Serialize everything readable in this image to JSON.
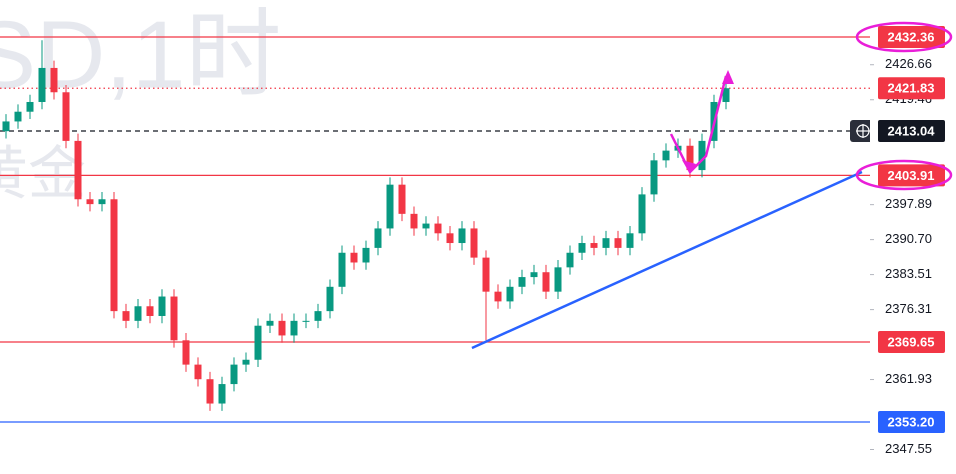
{
  "chart_data": {
    "type": "candlestick",
    "watermark": "SD,1时",
    "watermark_sub": "黄金",
    "up_color": "#089981",
    "down_color": "#f23645",
    "ylim": [
      2342.51,
      2439.97
    ],
    "yticks": [
      2426.66,
      2419.46,
      2397.89,
      {
        "value": 2390.7,
        "label": "2390.70"
      },
      2383.51,
      2376.31,
      2361.93,
      2347.55
    ],
    "open": [
      2413,
      2415,
      2417,
      2419,
      2426,
      2421,
      2411,
      2399,
      2398,
      2399,
      2376,
      2374,
      2377,
      2375,
      2379,
      2370,
      2365,
      2362,
      2357,
      2361,
      2365,
      2366,
      2373,
      2374,
      2371,
      2374,
      2374,
      2376,
      2381,
      2388,
      2386,
      2389,
      2393,
      2402,
      2396,
      2393,
      2394,
      2392,
      2390,
      2393,
      2387,
      2380,
      2378,
      2381,
      2383,
      2384,
      2380,
      2385,
      2388,
      2390,
      2389,
      2391,
      2389,
      2392,
      2400,
      2407,
      2409,
      2410,
      2405,
      2411,
      2419
    ],
    "high": [
      2416.5,
      2418.5,
      2420.5,
      2431.7,
      2427.5,
      2422.5,
      2412.5,
      2400.5,
      2400.5,
      2400.5,
      2377.5,
      2378.5,
      2378.5,
      2380.5,
      2380.5,
      2371.5,
      2366.5,
      2363.5,
      2362.5,
      2366.5,
      2367.5,
      2374.5,
      2375.5,
      2375.5,
      2375.5,
      2375.5,
      2377.5,
      2382.5,
      2389.5,
      2389.5,
      2390.5,
      2394.5,
      2403.5,
      2403.5,
      2397.5,
      2395.5,
      2395.5,
      2393.5,
      2394.5,
      2394.5,
      2388.5,
      2381.5,
      2382.5,
      2384.5,
      2385.5,
      2385.5,
      2386.5,
      2389.5,
      2391.5,
      2391.5,
      2392.5,
      2392.5,
      2393.5,
      2401.5,
      2408.5,
      2410.5,
      2411.5,
      2411.5,
      2412.5,
      2420.5,
      2423.5
    ],
    "low": [
      2411.5,
      2413.5,
      2415.5,
      2417.5,
      2419.5,
      2409.5,
      2397.5,
      2396.5,
      2396.5,
      2374.5,
      2372.5,
      2372.5,
      2373.5,
      2373.5,
      2368.5,
      2363.5,
      2360.5,
      2355.5,
      2355.5,
      2359.5,
      2363.5,
      2364.5,
      2371.5,
      2369.5,
      2369.5,
      2372.5,
      2372.5,
      2374.5,
      2379.5,
      2384.5,
      2384.5,
      2387.5,
      2391.5,
      2394.5,
      2391.5,
      2391.5,
      2390.5,
      2388.5,
      2388.5,
      2385.5,
      2370,
      2376.5,
      2376.5,
      2379.5,
      2381.5,
      2378.5,
      2378.5,
      2383.5,
      2386.5,
      2387.5,
      2387.5,
      2387.5,
      2387.5,
      2390.5,
      2398.5,
      2405.5,
      2407.5,
      2403.5,
      2403.5,
      2409.5,
      2417.5
    ],
    "close": [
      2415,
      2417,
      2419,
      2426,
      2421,
      2411,
      2399,
      2398,
      2399,
      2376,
      2374,
      2377,
      2375,
      2379,
      2370,
      2365,
      2362,
      2357,
      2361,
      2365,
      2366,
      2373,
      2374,
      2371,
      2374,
      2374,
      2376,
      2381,
      2388,
      2386,
      2389,
      2393,
      2402,
      2396,
      2393,
      2394,
      2392,
      2390,
      2393,
      2387,
      2380,
      2378,
      2381,
      2383,
      2384,
      2380,
      2385,
      2388,
      2390,
      2389,
      2391,
      2389,
      2392,
      2400,
      2407,
      2409,
      2410,
      2405,
      2411,
      2419,
      2421.83
    ],
    "levels": [
      {
        "price": 2432.36,
        "color": "#f23645",
        "style": "solid"
      },
      {
        "price": 2421.83,
        "color": "#f23645",
        "style": "dotted"
      },
      {
        "price": 2413.04,
        "color": "#131722",
        "style": "dashed"
      },
      {
        "price": 2403.91,
        "color": "#f23645",
        "style": "solid"
      },
      {
        "price": 2369.65,
        "color": "#f23645",
        "style": "solid"
      },
      {
        "price": {
          "value": 2353.2,
          "label": "2353.20"
        },
        "color": "#2962ff",
        "style": "solid"
      }
    ],
    "trendline": {
      "x": [
        38.83,
        71.33
      ],
      "values": [
        2368.42,
        2404.6
      ],
      "color": "#2962ff"
    }
  }
}
